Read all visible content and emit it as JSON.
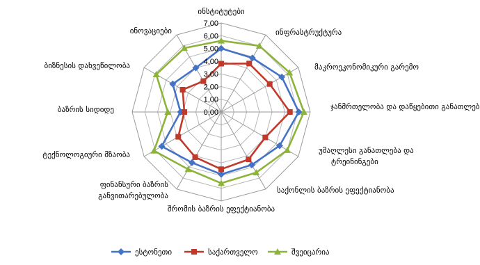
{
  "chart_data": {
    "type": "radar",
    "categories": [
      "ინსტიტუტები",
      "ინფრასტრუქტურა",
      "მაკროეკონომიკური გარემო",
      "ჯანმრთელობა და დაწყებითი განათლება",
      "უმაღლესი განათლება და ტრეინინგები",
      "საქონლის ბაზრის ეფექტიანობა",
      "შრომის ბაზრის ეფექტიანობა",
      "ფინანსური ბაზრის განვითარებულობა",
      "ტექნოლოგიური მზაობა",
      "ბაზრის სიდიდე",
      "ბიზნესის დახვეწილობა",
      "ინოვაციები"
    ],
    "series": [
      {
        "name": "ესტონეთი",
        "color": "#4472C4",
        "marker": "diamond",
        "values": [
          5.0,
          4.9,
          5.5,
          6.1,
          5.3,
          4.8,
          4.9,
          4.6,
          5.4,
          3.2,
          4.4,
          4.0
        ]
      },
      {
        "name": "საქართველო",
        "color": "#C0392B",
        "marker": "square",
        "values": [
          3.8,
          4.4,
          4.4,
          5.4,
          4.0,
          4.3,
          4.5,
          4.1,
          3.9,
          2.9,
          3.5,
          2.8
        ]
      },
      {
        "name": "შვეიცარია",
        "color": "#8DB33A",
        "marker": "triangle",
        "values": [
          5.6,
          6.0,
          6.2,
          6.5,
          6.0,
          5.5,
          5.6,
          5.2,
          6.1,
          4.2,
          5.9,
          5.8
        ]
      }
    ],
    "rlim": [
      0,
      7
    ],
    "ticks": [
      "0,00",
      "1,00",
      "2,00",
      "3,00",
      "4,00",
      "5,00",
      "6,00",
      "7,00"
    ],
    "legend_position": "bottom"
  }
}
